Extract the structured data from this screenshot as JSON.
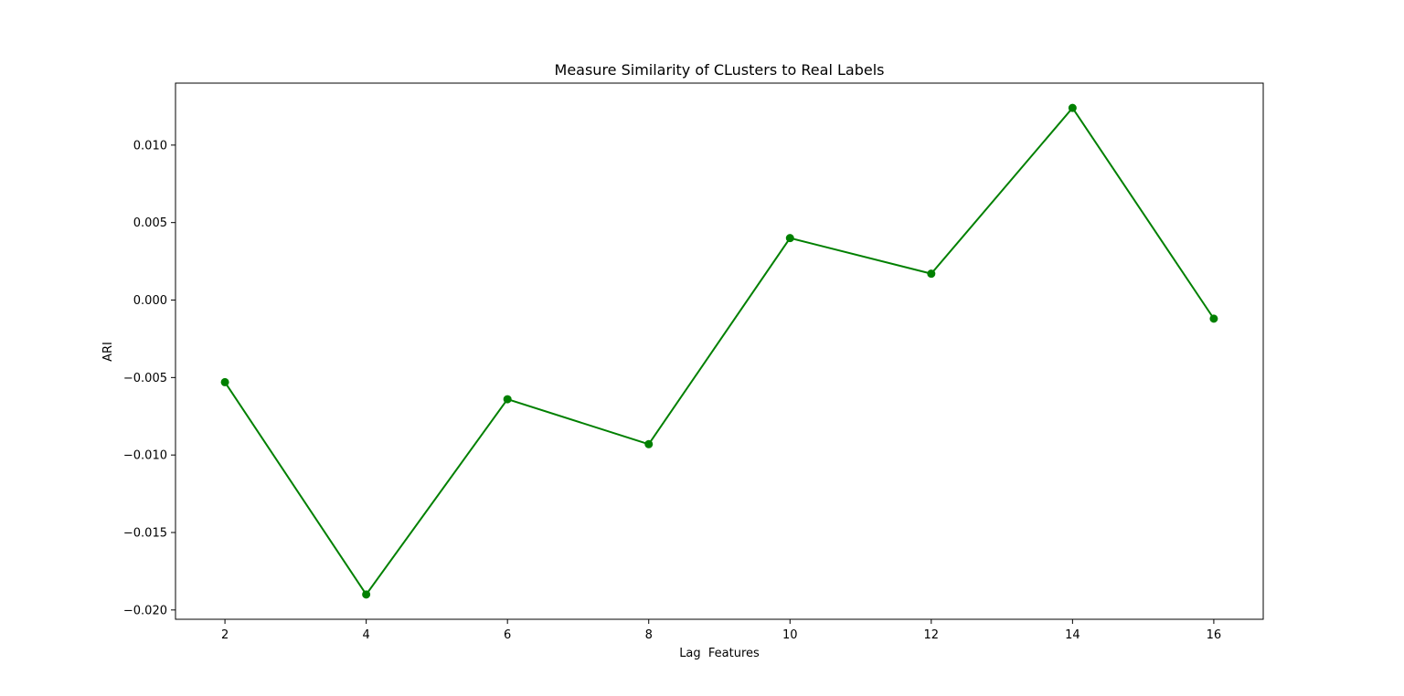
{
  "chart_data": {
    "type": "line",
    "title": "Measure Similarity of CLusters to Real Labels",
    "xlabel": "Lag  Features",
    "ylabel": "ARI",
    "x": [
      2,
      4,
      6,
      8,
      10,
      12,
      14,
      16
    ],
    "series": [
      {
        "values": [
          -0.0053,
          -0.019,
          -0.0064,
          -0.0093,
          0.004,
          0.0017,
          0.0124,
          -0.0012
        ],
        "color": "#008000",
        "marker": "circle"
      }
    ],
    "xticks": [
      2,
      4,
      6,
      8,
      10,
      12,
      14,
      16
    ],
    "xtick_labels": [
      "2",
      "4",
      "6",
      "8",
      "10",
      "12",
      "14",
      "16"
    ],
    "yticks": [
      -0.02,
      -0.015,
      -0.01,
      -0.005,
      0.0,
      0.005,
      0.01
    ],
    "ytick_labels": [
      "−0.020",
      "−0.015",
      "−0.010",
      "−0.005",
      "0.000",
      "0.005",
      "0.010"
    ],
    "xlim": [
      1.3,
      16.7
    ],
    "ylim": [
      -0.0206,
      0.014
    ],
    "grid": false,
    "legend": false
  }
}
